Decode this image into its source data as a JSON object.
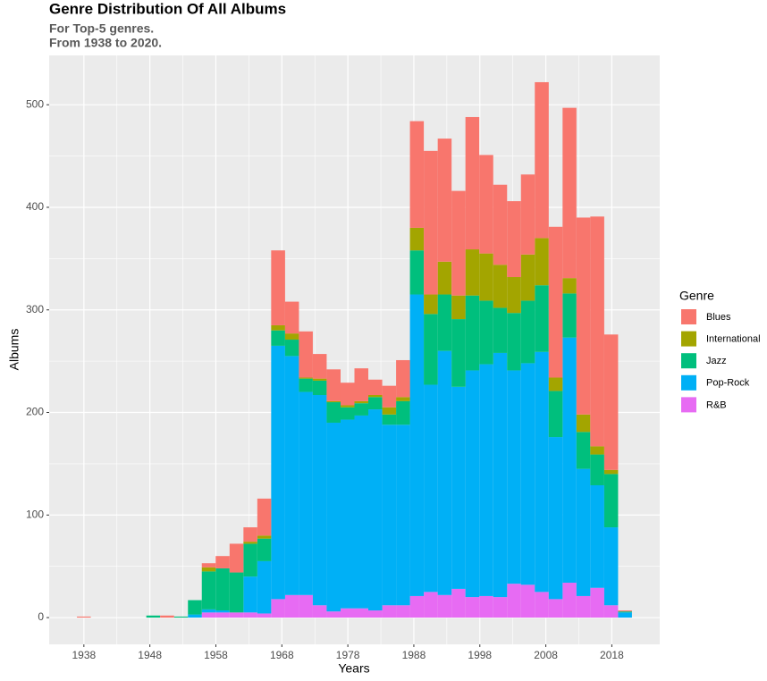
{
  "chart_data": {
    "type": "histogram",
    "title": "Genre Distribution Of All Albums",
    "subtitle": [
      "For Top-5 genres.",
      "From 1938 to 2020."
    ],
    "x_label": "Years",
    "y_label": "Albums",
    "legend_title": "Genre",
    "bins": [
      1936.95,
      1939.05,
      1941.15,
      1943.26,
      1945.36,
      1947.46,
      1949.56,
      1951.67,
      1953.77,
      1955.87,
      1957.97,
      1960.08,
      1962.18,
      1964.28,
      1966.38,
      1968.49,
      1970.59,
      1972.69,
      1974.79,
      1976.9,
      1979.0,
      1981.1,
      1983.21,
      1985.31,
      1987.41,
      1989.51,
      1991.62,
      1993.72,
      1995.82,
      1997.92,
      2000.03,
      2002.13,
      2004.23,
      2006.33,
      2008.44,
      2010.54,
      2012.64,
      2014.74,
      2016.85,
      2018.95,
      2021.05
    ],
    "series": [
      {
        "name": "Blues",
        "color": "#F8766D",
        "values": [
          1,
          0,
          0,
          0,
          0,
          0,
          2,
          0,
          0,
          4,
          12,
          28,
          14,
          36,
          73,
          31,
          45,
          24,
          31,
          22,
          32,
          15,
          21,
          36,
          104,
          140,
          120,
          102,
          129,
          96,
          78,
          74,
          78,
          152,
          147,
          166,
          192,
          224,
          132,
          1
        ]
      },
      {
        "name": "International",
        "color": "#A3A500",
        "values": [
          0,
          0,
          0,
          0,
          0,
          0,
          0,
          0,
          0,
          4,
          0,
          0,
          2,
          3,
          5,
          6,
          1,
          2,
          1,
          2,
          2,
          2,
          7,
          4,
          22,
          19,
          32,
          23,
          45,
          46,
          42,
          35,
          45,
          46,
          13,
          15,
          17,
          8,
          4,
          0
        ]
      },
      {
        "name": "Jazz",
        "color": "#00BF7D",
        "values": [
          0,
          0,
          0,
          0,
          0,
          2,
          0,
          1,
          14,
          37,
          41,
          39,
          32,
          22,
          15,
          16,
          13,
          14,
          20,
          12,
          12,
          12,
          10,
          23,
          43,
          69,
          55,
          66,
          73,
          62,
          44,
          56,
          61,
          65,
          45,
          43,
          36,
          30,
          52,
          1
        ]
      },
      {
        "name": "Pop-Rock",
        "color": "#00B0F6",
        "values": [
          0,
          0,
          0,
          0,
          0,
          0,
          0,
          0,
          3,
          3,
          2,
          0,
          35,
          51,
          247,
          233,
          198,
          205,
          184,
          184,
          188,
          196,
          176,
          176,
          294,
          202,
          238,
          197,
          221,
          226,
          238,
          208,
          216,
          234,
          158,
          239,
          124,
          100,
          76,
          5
        ]
      },
      {
        "name": "R&B",
        "color": "#E76BF3",
        "values": [
          0,
          0,
          0,
          0,
          0,
          0,
          0,
          0,
          0,
          5,
          5,
          5,
          5,
          4,
          18,
          22,
          22,
          12,
          6,
          9,
          9,
          7,
          12,
          12,
          21,
          25,
          22,
          28,
          20,
          21,
          20,
          33,
          32,
          25,
          18,
          34,
          21,
          29,
          12,
          0
        ]
      }
    ],
    "xlim": [
      1932.74,
      2025.26
    ],
    "xticks": [
      1938,
      1948,
      1958,
      1968,
      1978,
      1988,
      1998,
      2008,
      2018
    ],
    "ylim": [
      -26.1,
      548.1
    ],
    "yticks": [
      0,
      100,
      200,
      300,
      400,
      500
    ],
    "grid": true,
    "minor_grid": true,
    "legend": "right"
  }
}
